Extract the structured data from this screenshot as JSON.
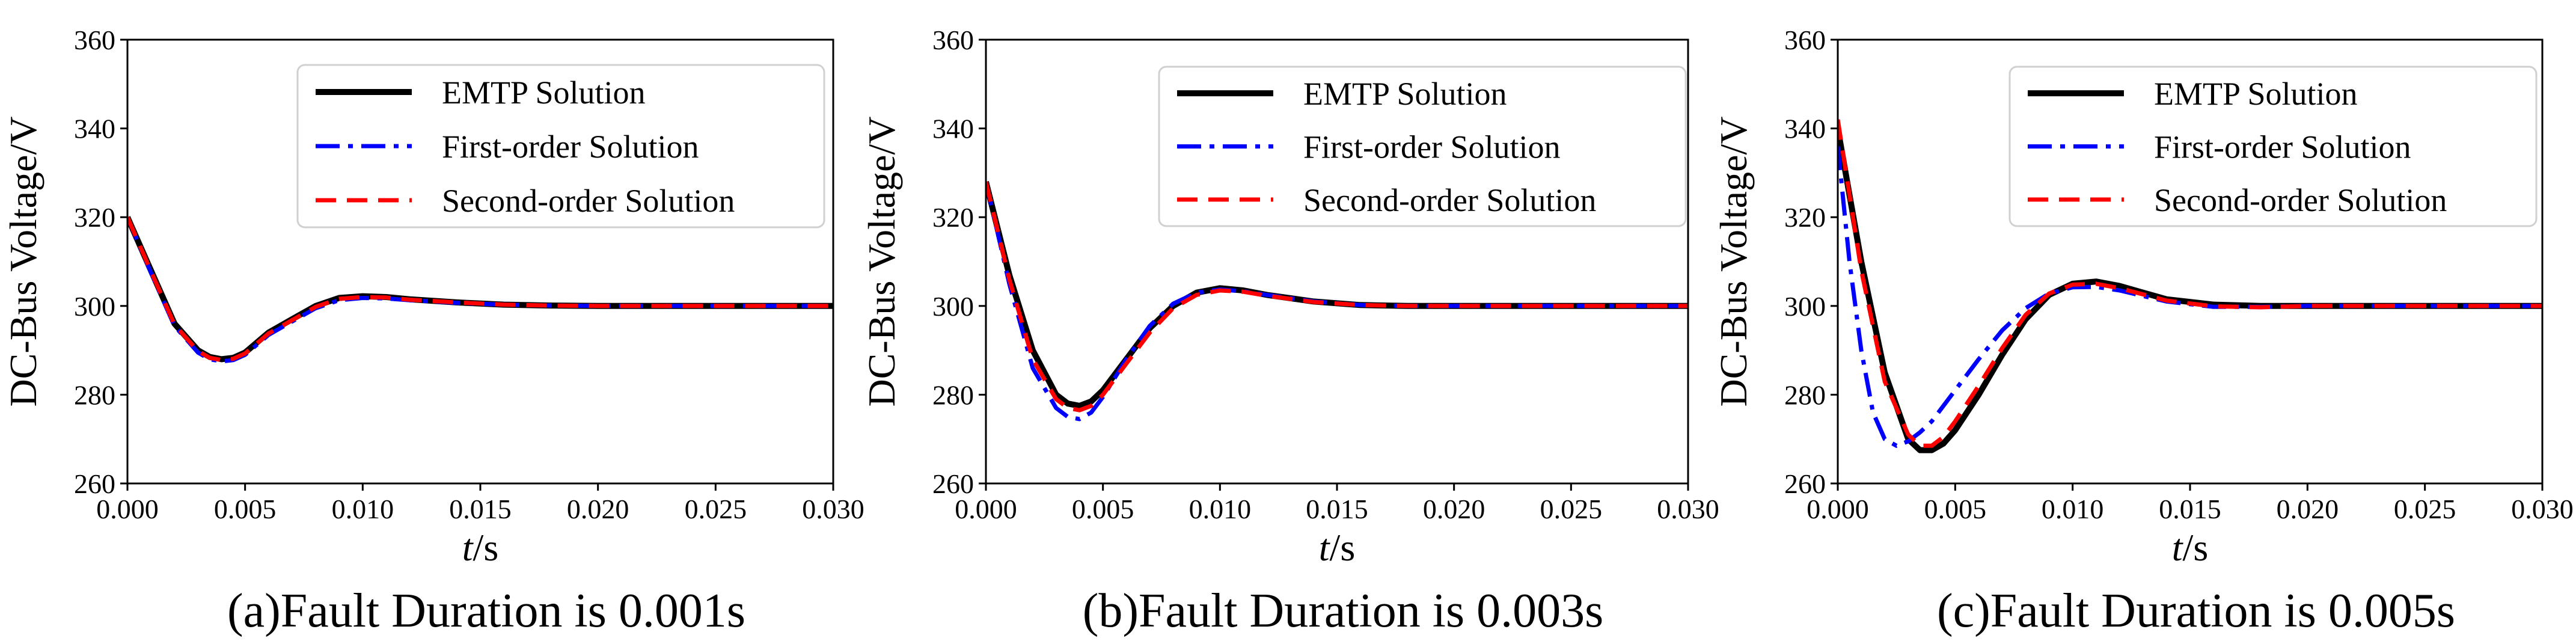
{
  "chart_data": [
    {
      "type": "line",
      "caption": "(a)Fault Duration is 0.001s",
      "ylabel": "DC-Bus Voltage/V",
      "xlabel_italic": "t",
      "xlabel_unit": "/s",
      "xlim": [
        0.0,
        0.03
      ],
      "ylim": [
        260,
        360
      ],
      "xticks": [
        0.0,
        0.005,
        0.01,
        0.015,
        0.02,
        0.025,
        0.03
      ],
      "xtick_labels": [
        "0.000",
        "0.005",
        "0.010",
        "0.015",
        "0.020",
        "0.025",
        "0.030"
      ],
      "yticks": [
        260,
        280,
        300,
        320,
        340,
        360
      ],
      "ytick_labels": [
        "260",
        "280",
        "300",
        "320",
        "340",
        "360"
      ],
      "grid": false,
      "legend_position": "top-right",
      "series": [
        {
          "name": "EMTP Solution",
          "color": "#000000",
          "style": "solid",
          "x": [
            0.0,
            0.001,
            0.002,
            0.003,
            0.0035,
            0.004,
            0.0045,
            0.005,
            0.006,
            0.007,
            0.008,
            0.009,
            0.01,
            0.011,
            0.012,
            0.014,
            0.016,
            0.018,
            0.02,
            0.025,
            0.03
          ],
          "y": [
            320,
            308,
            296,
            290,
            288.5,
            288,
            288.3,
            289.5,
            294,
            297,
            300,
            301.8,
            302.2,
            302,
            301.5,
            300.8,
            300.3,
            300.1,
            300,
            300,
            300
          ]
        },
        {
          "name": "First-order Solution",
          "color": "#0000ff",
          "style": "dashdot",
          "x": [
            0.0,
            0.001,
            0.002,
            0.003,
            0.0035,
            0.004,
            0.0045,
            0.005,
            0.006,
            0.007,
            0.008,
            0.009,
            0.01,
            0.011,
            0.012,
            0.014,
            0.016,
            0.018,
            0.02,
            0.025,
            0.03
          ],
          "y": [
            320,
            307.5,
            295.5,
            289.5,
            288,
            287.5,
            287.8,
            289,
            293.5,
            296.5,
            299.5,
            301.3,
            301.8,
            301.7,
            301.3,
            300.7,
            300.3,
            300.1,
            300,
            300,
            300
          ]
        },
        {
          "name": "Second-order Solution",
          "color": "#ff0000",
          "style": "dashed",
          "x": [
            0.0,
            0.001,
            0.002,
            0.003,
            0.0035,
            0.004,
            0.0045,
            0.005,
            0.006,
            0.007,
            0.008,
            0.009,
            0.01,
            0.011,
            0.012,
            0.014,
            0.016,
            0.018,
            0.02,
            0.025,
            0.03
          ],
          "y": [
            320,
            307.8,
            295.8,
            289.8,
            288.3,
            287.8,
            288.1,
            289.3,
            293.8,
            296.8,
            299.8,
            301.6,
            302,
            301.9,
            301.4,
            300.8,
            300.3,
            300.1,
            300,
            300,
            300
          ]
        }
      ]
    },
    {
      "type": "line",
      "caption": "(b)Fault Duration is 0.003s",
      "ylabel": "DC-Bus Voltage/V",
      "xlabel_italic": "t",
      "xlabel_unit": "/s",
      "xlim": [
        0.0,
        0.03
      ],
      "ylim": [
        260,
        360
      ],
      "xticks": [
        0.0,
        0.005,
        0.01,
        0.015,
        0.02,
        0.025,
        0.03
      ],
      "xtick_labels": [
        "0.000",
        "0.005",
        "0.010",
        "0.015",
        "0.020",
        "0.025",
        "0.030"
      ],
      "yticks": [
        260,
        280,
        300,
        320,
        340,
        360
      ],
      "ytick_labels": [
        "260",
        "280",
        "300",
        "320",
        "340",
        "360"
      ],
      "grid": false,
      "legend_position": "top-right",
      "series": [
        {
          "name": "EMTP Solution",
          "color": "#000000",
          "style": "solid",
          "x": [
            0.0,
            0.001,
            0.002,
            0.003,
            0.0035,
            0.004,
            0.0045,
            0.005,
            0.006,
            0.007,
            0.008,
            0.009,
            0.01,
            0.011,
            0.012,
            0.014,
            0.016,
            0.018,
            0.02,
            0.025,
            0.03
          ],
          "y": [
            328,
            307,
            290,
            280,
            278,
            277.5,
            278.5,
            281,
            288,
            295,
            300,
            303,
            304,
            303.5,
            302.5,
            301,
            300.2,
            300,
            300,
            300,
            300
          ]
        },
        {
          "name": "First-order Solution",
          "color": "#0000ff",
          "style": "dashdot",
          "x": [
            0.0,
            0.001,
            0.002,
            0.003,
            0.0035,
            0.004,
            0.0045,
            0.005,
            0.006,
            0.007,
            0.008,
            0.009,
            0.01,
            0.011,
            0.012,
            0.014,
            0.016,
            0.018,
            0.02,
            0.025,
            0.03
          ],
          "y": [
            328,
            305,
            286,
            277,
            275,
            274.5,
            276,
            279.5,
            288,
            295.5,
            300.5,
            303,
            303.7,
            303.3,
            302.5,
            301,
            300.2,
            300,
            300,
            300,
            300
          ]
        },
        {
          "name": "Second-order Solution",
          "color": "#ff0000",
          "style": "dashed",
          "x": [
            0.0,
            0.001,
            0.002,
            0.003,
            0.0035,
            0.004,
            0.0045,
            0.005,
            0.006,
            0.007,
            0.008,
            0.009,
            0.01,
            0.011,
            0.012,
            0.014,
            0.016,
            0.018,
            0.02,
            0.025,
            0.03
          ],
          "y": [
            328,
            306,
            288,
            279,
            277,
            276.5,
            277.5,
            280,
            287,
            294,
            299.5,
            302.5,
            303.5,
            303.2,
            302.3,
            300.9,
            300.2,
            300,
            300,
            300,
            300
          ]
        }
      ]
    },
    {
      "type": "line",
      "caption": "(c)Fault Duration is 0.005s",
      "ylabel": "DC-Bus Voltage/V",
      "xlabel_italic": "t",
      "xlabel_unit": "/s",
      "xlim": [
        0.0,
        0.03
      ],
      "ylim": [
        260,
        360
      ],
      "xticks": [
        0.0,
        0.005,
        0.01,
        0.015,
        0.02,
        0.025,
        0.03
      ],
      "xtick_labels": [
        "0.000",
        "0.005",
        "0.010",
        "0.015",
        "0.020",
        "0.025",
        "0.030"
      ],
      "yticks": [
        260,
        280,
        300,
        320,
        340,
        360
      ],
      "ytick_labels": [
        "260",
        "280",
        "300",
        "320",
        "340",
        "360"
      ],
      "grid": false,
      "legend_position": "top-right",
      "series": [
        {
          "name": "EMTP Solution",
          "color": "#000000",
          "style": "solid",
          "x": [
            0.0,
            0.001,
            0.002,
            0.003,
            0.0035,
            0.004,
            0.0045,
            0.005,
            0.006,
            0.007,
            0.008,
            0.009,
            0.01,
            0.011,
            0.012,
            0.014,
            0.016,
            0.018,
            0.02,
            0.025,
            0.03
          ],
          "y": [
            340,
            310,
            285,
            270,
            267.5,
            267.5,
            269,
            272,
            280,
            289,
            297,
            302.5,
            305,
            305.5,
            304.5,
            301.5,
            300.3,
            300,
            300,
            300,
            300
          ]
        },
        {
          "name": "First-order Solution",
          "color": "#0000ff",
          "style": "dashdot",
          "x": [
            0.0,
            0.0005,
            0.001,
            0.0015,
            0.002,
            0.0025,
            0.003,
            0.0035,
            0.004,
            0.005,
            0.006,
            0.007,
            0.008,
            0.009,
            0.01,
            0.011,
            0.012,
            0.014,
            0.016,
            0.018,
            0.02,
            0.025,
            0.03
          ],
          "y": [
            336,
            310,
            290,
            276,
            270,
            268.5,
            269.5,
            271.5,
            274,
            281,
            288,
            294.5,
            299.5,
            302.8,
            304.2,
            304.3,
            303.5,
            301,
            299.8,
            299.8,
            300,
            300,
            300
          ]
        },
        {
          "name": "Second-order Solution",
          "color": "#ff0000",
          "style": "dashed",
          "x": [
            0.0,
            0.001,
            0.002,
            0.003,
            0.0035,
            0.004,
            0.0045,
            0.005,
            0.006,
            0.007,
            0.008,
            0.009,
            0.01,
            0.011,
            0.012,
            0.014,
            0.016,
            0.018,
            0.02,
            0.025,
            0.03
          ],
          "y": [
            342,
            308,
            283,
            271,
            268.5,
            268.5,
            270.5,
            274,
            282,
            290.5,
            298,
            302.8,
            304.8,
            305,
            304,
            301.2,
            299.9,
            299.7,
            300,
            300,
            300
          ]
        }
      ]
    }
  ]
}
